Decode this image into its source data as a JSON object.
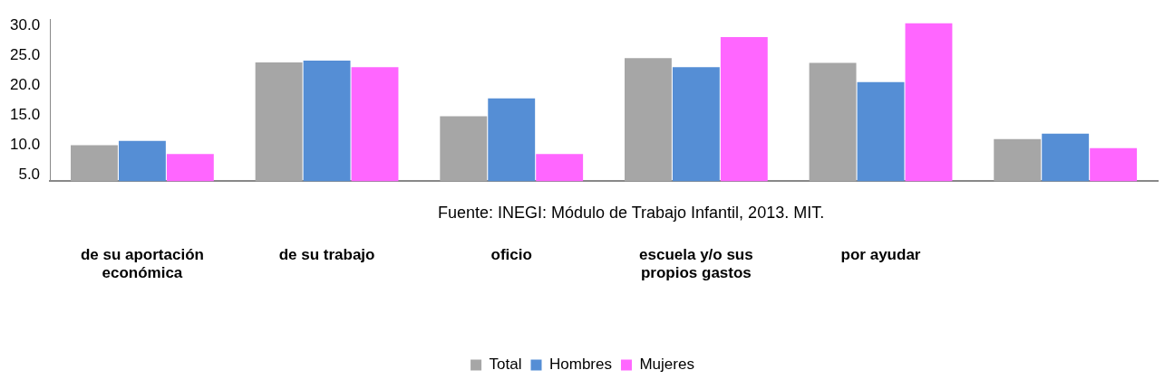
{
  "chart_data": {
    "type": "bar",
    "categories": [
      "de su aportación económica",
      "de su trabajo",
      "oficio",
      "escuela y/o sus propios gastos",
      "por ayudar",
      null
    ],
    "series": [
      {
        "name": "Total",
        "color": "#a6a6a6",
        "values": [
          10.0,
          23.8,
          14.8,
          24.5,
          23.7,
          11.0
        ]
      },
      {
        "name": "Hombres",
        "color": "#558ed5",
        "values": [
          10.7,
          24.1,
          17.8,
          23.0,
          20.5,
          11.9
        ]
      },
      {
        "name": "Mujeres",
        "color": "#ff66ff",
        "values": [
          8.5,
          23.0,
          8.5,
          28.0,
          30.3,
          9.5
        ]
      }
    ],
    "ylim": [
      4,
      31
    ],
    "yticks": [
      {
        "value": 5,
        "label": "5.0"
      },
      {
        "value": 10,
        "label": "10.0"
      },
      {
        "value": 15,
        "label": "15.0"
      },
      {
        "value": 20,
        "label": "20.0"
      },
      {
        "value": 25,
        "label": "25.0"
      },
      {
        "value": 30,
        "label": "30.0"
      }
    ],
    "grid": false,
    "legend": "bottom",
    "annotations": [
      "Fuente: INEGI: Módulo de Trabajo Infantil, 2013. MIT."
    ]
  }
}
